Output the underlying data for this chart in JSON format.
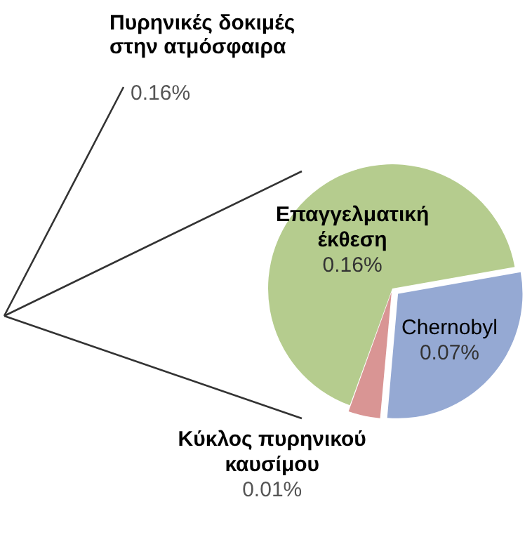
{
  "chart_data": {
    "type": "pie",
    "categories": [
      "Chernobyl",
      "Κύκλος πυρηνικού καυσίμου",
      "Επαγγελματική έκθεση"
    ],
    "values": [
      0.07,
      0.01,
      0.16
    ],
    "colors": [
      "#95a9d3",
      "#d99594",
      "#b5cc8e"
    ],
    "value_labels": [
      "0.07%",
      "0.01%",
      "0.16%"
    ],
    "annotations": [
      "Πυρηνικές δοκιμές στην ατμόσφαιρα",
      "0.16%"
    ],
    "legend": false
  }
}
